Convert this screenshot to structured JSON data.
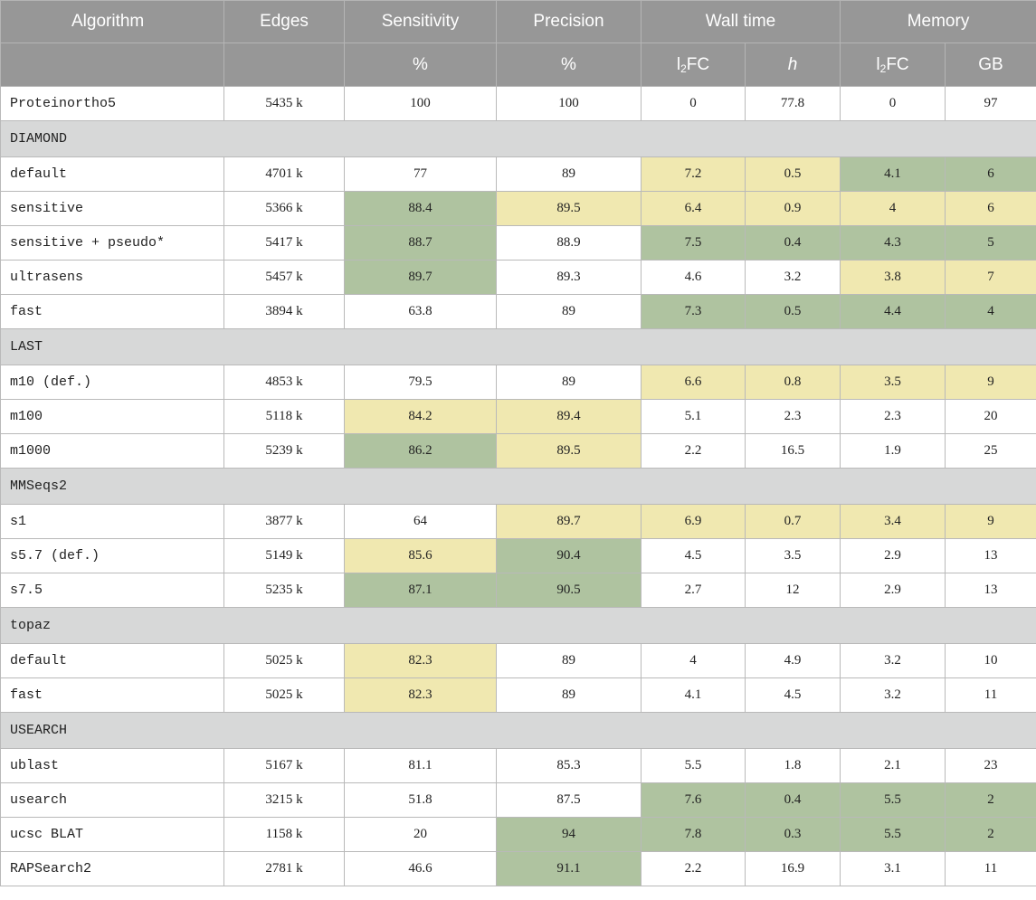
{
  "header": {
    "algorithm": "Algorithm",
    "edges": "Edges",
    "sensitivity": "Sensitivity",
    "precision": "Precision",
    "wall_time": "Wall time",
    "memory": "Memory",
    "sens_unit": "%",
    "prec_unit": "%",
    "wt_l2fc_base": "l",
    "wt_l2fc_sub": "2",
    "wt_l2fc_tail": "FC",
    "wt_unit": "h",
    "mem_l2fc_base": "l",
    "mem_l2fc_sub": "2",
    "mem_l2fc_tail": "FC",
    "mem_unit": "GB"
  },
  "highlight_colors": {
    "green": "#afc3a0",
    "yellow": "#f0e8b0",
    "group_bg": "#d7d8d8",
    "header_bg": "#979797"
  },
  "rows": [
    {
      "name": "Proteinortho5",
      "edges": "5435 k",
      "sens": "100",
      "prec": "100",
      "wt_l2fc": "0",
      "wt_h": "77.8",
      "mem_l2fc": "0",
      "mem_gb": "97"
    },
    {
      "group": "DIAMOND"
    },
    {
      "name": "default",
      "edges": "4701 k",
      "sens": "77",
      "prec": "89",
      "wt_l2fc": "7.2",
      "wt_h": "0.5",
      "mem_l2fc": "4.1",
      "mem_gb": "6"
    },
    {
      "name": "sensitive",
      "edges": "5366 k",
      "sens": "88.4",
      "prec": "89.5",
      "wt_l2fc": "6.4",
      "wt_h": "0.9",
      "mem_l2fc": "4",
      "mem_gb": "6"
    },
    {
      "name": "sensitive + pseudo*",
      "edges": "5417 k",
      "sens": "88.7",
      "prec": "88.9",
      "wt_l2fc": "7.5",
      "wt_h": "0.4",
      "mem_l2fc": "4.3",
      "mem_gb": "5"
    },
    {
      "name": "ultrasens",
      "edges": "5457 k",
      "sens": "89.7",
      "prec": "89.3",
      "wt_l2fc": "4.6",
      "wt_h": "3.2",
      "mem_l2fc": "3.8",
      "mem_gb": "7"
    },
    {
      "name": "fast",
      "edges": "3894 k",
      "sens": "63.8",
      "prec": "89",
      "wt_l2fc": "7.3",
      "wt_h": "0.5",
      "mem_l2fc": "4.4",
      "mem_gb": "4"
    },
    {
      "group": "LAST"
    },
    {
      "name": "m10 (def.)",
      "edges": "4853 k",
      "sens": "79.5",
      "prec": "89",
      "wt_l2fc": "6.6",
      "wt_h": "0.8",
      "mem_l2fc": "3.5",
      "mem_gb": "9"
    },
    {
      "name": "m100",
      "edges": "5118 k",
      "sens": "84.2",
      "prec": "89.4",
      "wt_l2fc": "5.1",
      "wt_h": "2.3",
      "mem_l2fc": "2.3",
      "mem_gb": "20"
    },
    {
      "name": "m1000",
      "edges": "5239 k",
      "sens": "86.2",
      "prec": "89.5",
      "wt_l2fc": "2.2",
      "wt_h": "16.5",
      "mem_l2fc": "1.9",
      "mem_gb": "25"
    },
    {
      "group": "MMSeqs2"
    },
    {
      "name": "s1",
      "edges": "3877 k",
      "sens": "64",
      "prec": "89.7",
      "wt_l2fc": "6.9",
      "wt_h": "0.7",
      "mem_l2fc": "3.4",
      "mem_gb": "9"
    },
    {
      "name": "s5.7 (def.)",
      "edges": "5149 k",
      "sens": "85.6",
      "prec": "90.4",
      "wt_l2fc": "4.5",
      "wt_h": "3.5",
      "mem_l2fc": "2.9",
      "mem_gb": "13"
    },
    {
      "name": "s7.5",
      "edges": "5235 k",
      "sens": "87.1",
      "prec": "90.5",
      "wt_l2fc": "2.7",
      "wt_h": "12",
      "mem_l2fc": "2.9",
      "mem_gb": "13"
    },
    {
      "group": "topaz"
    },
    {
      "name": "default",
      "edges": "5025 k",
      "sens": "82.3",
      "prec": "89",
      "wt_l2fc": "4",
      "wt_h": "4.9",
      "mem_l2fc": "3.2",
      "mem_gb": "10"
    },
    {
      "name": "fast",
      "edges": "5025 k",
      "sens": "82.3",
      "prec": "89",
      "wt_l2fc": "4.1",
      "wt_h": "4.5",
      "mem_l2fc": "3.2",
      "mem_gb": "11"
    },
    {
      "group": "USEARCH"
    },
    {
      "name": "ublast",
      "edges": "5167 k",
      "sens": "81.1",
      "prec": "85.3",
      "wt_l2fc": "5.5",
      "wt_h": "1.8",
      "mem_l2fc": "2.1",
      "mem_gb": "23"
    },
    {
      "name": "usearch",
      "edges": "3215 k",
      "sens": "51.8",
      "prec": "87.5",
      "wt_l2fc": "7.6",
      "wt_h": "0.4",
      "mem_l2fc": "5.5",
      "mem_gb": "2"
    },
    {
      "name": "ucsc BLAT",
      "edges": "1158 k",
      "sens": "20",
      "prec": "94",
      "wt_l2fc": "7.8",
      "wt_h": "0.3",
      "mem_l2fc": "5.5",
      "mem_gb": "2"
    },
    {
      "name": "RAPSearch2",
      "edges": "2781 k",
      "sens": "46.6",
      "prec": "91.1",
      "wt_l2fc": "2.2",
      "wt_h": "16.9",
      "mem_l2fc": "3.1",
      "mem_gb": "11"
    }
  ]
}
